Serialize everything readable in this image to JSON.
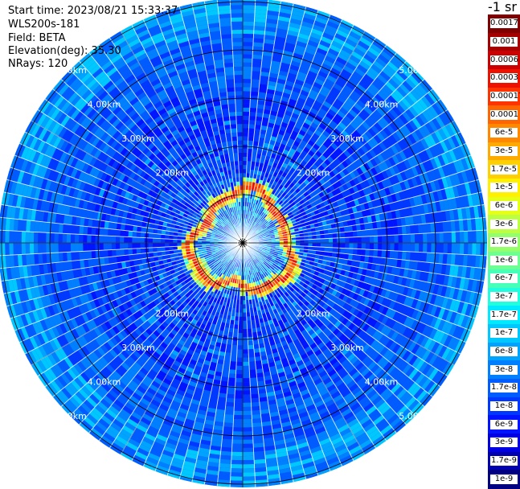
{
  "header": {
    "start_time": "Start time: 2023/08/21 15:33:37",
    "instrument": "WLS200s-181",
    "field": "Field: BETA",
    "elevation": "Elevation(deg): 35.30",
    "nrays": "NRays: 120"
  },
  "colorbar": {
    "unit": "-1 sr",
    "labels": [
      "0.0017",
      "0.001",
      "0.0006",
      "0.0003",
      "0.00017",
      "0.0001",
      "6e-5",
      "3e-5",
      "1.7e-5",
      "1e-5",
      "6e-6",
      "3e-6",
      "1.7e-6",
      "1e-6",
      "6e-7",
      "3e-7",
      "1.7e-7",
      "1e-7",
      "6e-8",
      "3e-8",
      "1.7e-8",
      "1e-8",
      "6e-9",
      "3e-9",
      "1.7e-9",
      "1e-9"
    ],
    "colors": [
      "#7f0000",
      "#a50000",
      "#cc0000",
      "#ee1100",
      "#ff3300",
      "#ff6600",
      "#ff8800",
      "#ffaa00",
      "#ffd000",
      "#fff000",
      "#e6ff19",
      "#bcff42",
      "#94ff6b",
      "#6dff92",
      "#46ffb9",
      "#1fffe0",
      "#00eaff",
      "#00c8ff",
      "#00a4ff",
      "#0080ff",
      "#005cff",
      "#0038ff",
      "#0014ff",
      "#0000e0",
      "#0000b0",
      "#000080"
    ]
  },
  "chart_data": {
    "type": "heatmap",
    "projection": "polar-ppi",
    "field": "BETA",
    "unit": "sr-1",
    "elevation_deg": 35.3,
    "n_rays": 120,
    "color_scale": "log",
    "value_range": [
      1e-09,
      0.0017
    ],
    "range_rings_km": [
      1.0,
      2.0,
      3.0,
      4.0,
      5.0
    ],
    "range_labels": [
      "2.00km",
      "3.00km",
      "4.00km",
      "5.00km"
    ],
    "max_range_km": 5.2,
    "ray_spacing_deg": 3.0,
    "regions": [
      {
        "range_km": [
          0.0,
          0.6
        ],
        "dominant_beta": "1e-7 to 1e-8"
      },
      {
        "range_km": [
          0.8,
          1.2
        ],
        "dominant_beta": "3e-5 to 0.0006"
      },
      {
        "range_km": [
          1.2,
          3.5
        ],
        "dominant_beta": "1e-8 to 1e-9"
      },
      {
        "range_km": [
          3.5,
          5.2
        ],
        "dominant_beta": "1e-7 to 1e-8"
      }
    ],
    "grid": true
  }
}
